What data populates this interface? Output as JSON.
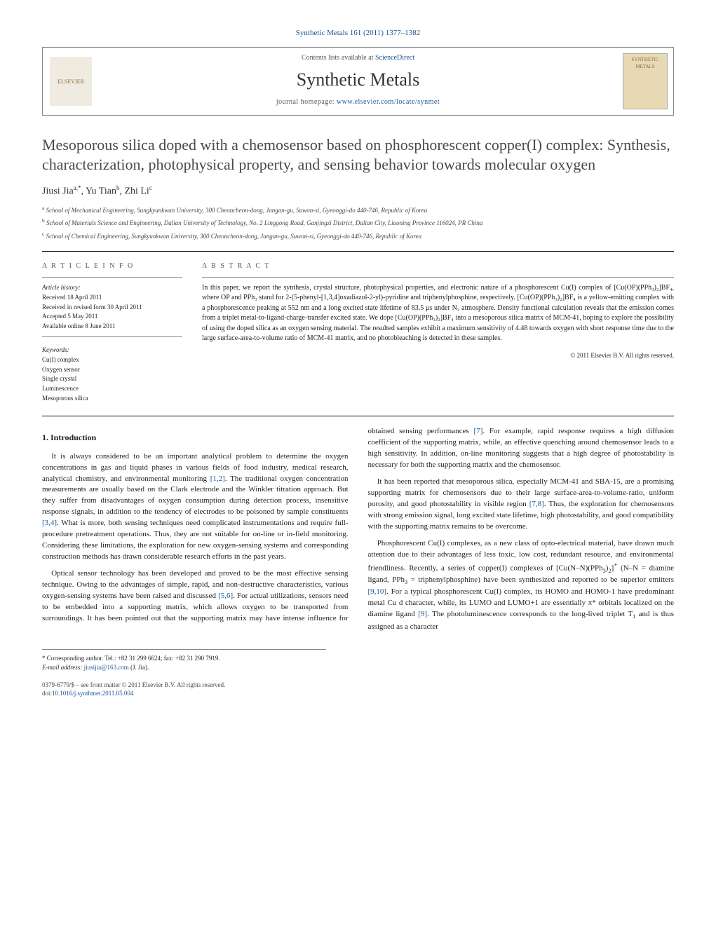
{
  "header": {
    "citation": "Synthetic Metals 161 (2011) 1377–1382",
    "contents_available": "Contents lists available at",
    "contents_link": "ScienceDirect",
    "journal": "Synthetic Metals",
    "homepage_label": "journal homepage:",
    "homepage_url": "www.elsevier.com/locate/synmet",
    "publisher_logo_text": "ELSEVIER",
    "cover_text": "SYNTHETIC METALS"
  },
  "article": {
    "title": "Mesoporous silica doped with a chemosensor based on phosphorescent copper(I) complex: Synthesis, characterization, photophysical property, and sensing behavior towards molecular oxygen",
    "authors_html": "Jiusi Jia<sup>a,*</sup>, Yu Tian<sup>b</sup>, Zhi Li<sup>c</sup>",
    "affiliations": [
      {
        "sup": "a",
        "text": "School of Mechanical Engineering, Sungkyunkwan University, 300 Cheoncheon-dong, Jangan-gu, Suwon-si, Gyeonggi-do 440-746, Republic of Korea"
      },
      {
        "sup": "b",
        "text": "School of Materials Science and Engineering, Dalian University of Technology, No. 2 Linggong Road, Ganjingzi District, Dalian City, Liaoning Province 116024, PR China"
      },
      {
        "sup": "c",
        "text": "School of Chemical Engineering, Sungkyunkwan University, 300 Cheoncheon-dong, Jangan-gu, Suwon-si, Gyeonggi-do 440-746, Republic of Korea"
      }
    ]
  },
  "info": {
    "heading": "A R T I C L E   I N F O",
    "history_label": "Article history:",
    "history": [
      "Received 18 April 2011",
      "Received in revised form 30 April 2011",
      "Accepted 5 May 2011",
      "Available online 8 June 2011"
    ],
    "keywords_label": "Keywords:",
    "keywords": [
      "Cu(I) complex",
      "Oxygen sensor",
      "Single crystal",
      "Luminescence",
      "Mesoporous silica"
    ]
  },
  "abstract": {
    "heading": "A B S T R A C T",
    "text": "In this paper, we report the synthesis, crystal structure, photophysical properties, and electronic nature of a phosphorescent Cu(I) complex of [Cu(OP)(PPh₃)₂]BF₄, where OP and PPh₃ stand for 2-(5-phenyl-[1,3,4]oxadiazol-2-yl)-pyridine and triphenylphosphine, respectively. [Cu(OP)(PPh₃)₂]BF₄ is a yellow-emitting complex with a phosphorescence peaking at 552 nm and a long excited state lifetime of 83.5 μs under N₂ atmosphere. Density functional calculation reveals that the emission comes from a triplet metal-to-ligand-charge-transfer excited state. We dope [Cu(OP)(PPh₃)₂]BF₄ into a mesoporous silica matrix of MCM-41, hoping to explore the possibility of using the doped silica as an oxygen sensing material. The resulted samples exhibit a maximum sensitivity of 4.48 towards oxygen with short response time due to the large surface-area-to-volume ratio of MCM-41 matrix, and no photobleaching is detected in these samples.",
    "copyright": "© 2011 Elsevier B.V. All rights reserved."
  },
  "body": {
    "section_heading": "1. Introduction",
    "paragraphs": [
      "It is always considered to be an important analytical problem to determine the oxygen concentrations in gas and liquid phases in various fields of food industry, medical research, analytical chemistry, and environmental monitoring [1,2]. The traditional oxygen concentration measurements are usually based on the Clark electrode and the Winkler titration approach. But they suffer from disadvantages of oxygen consumption during detection process, insensitive response signals, in addition to the tendency of electrodes to be poisoned by sample constituents [3,4]. What is more, both sensing techniques need complicated instrumentations and require full-procedure pretreatment operations. Thus, they are not suitable for on-line or in-field monitoring. Considering these limitations, the exploration for new oxygen-sensing systems and corresponding construction methods has drawn considerable research efforts in the past years.",
      "Optical sensor technology has been developed and proved to be the most effective sensing technique. Owing to the advantages of simple, rapid, and non-destructive characteristics, various oxygen-sensing systems have been raised and discussed [5,6]. For actual utilizations, sensors need to be embedded into a supporting matrix, which allows oxygen to be transported from surroundings. It has been pointed out that the supporting matrix may have intense influence for obtained sensing performances [7]. For example, rapid response requires a high diffusion coefficient of the supporting matrix, while, an effective quenching around chemosensor leads to a high sensitivity. In addition, on-line monitoring suggests that a high degree of photostability is necessary for both the supporting matrix and the chemosensor.",
      "It has been reported that mesoporous silica, especially MCM-41 and SBA-15, are a promising supporting matrix for chemosensors due to their large surface-area-to-volume-ratio, uniform porosity, and good photostability in visible region [7,8]. Thus, the exploration for chemosensors with strong emission signal, long excited state lifetime, high photostability, and good compatibility with the supporting matrix remains to be overcome.",
      "Phosphorescent Cu(I) complexes, as a new class of opto-electrical material, have drawn much attention due to their advantages of less toxic, low cost, redundant resource, and environmental friendliness. Recently, a series of copper(I) complexes of [Cu(N–N)(PPh₃)₂]⁺ (N–N = diamine ligand, PPh₃ = triphenylphosphine) have been synthesized and reported to be superior emitters [9,10]. For a typical phosphorescent Cu(I) complex, its HOMO and HOMO-1 have predominant metal Cu d character, while, its LUMO and LUMO+1 are essentially π* orbitals localized on the diamine ligand [9]. The photoluminescence corresponds to the long-lived triplet T₁ and is thus assigned as a character"
    ]
  },
  "footnote": {
    "corresponding": "* Corresponding author. Tel.: +82 31 299 6624; fax: +82 31 290 7919.",
    "email_label": "E-mail address:",
    "email": "jiusijia@163.com",
    "email_who": "(J. Jia)."
  },
  "bottom": {
    "issn": "0379-6779/$ – see front matter © 2011 Elsevier B.V. All rights reserved.",
    "doi_label": "doi:",
    "doi": "10.1016/j.synthmet.2011.05.004"
  },
  "refs": {
    "r12": "[1,2]",
    "r34": "[3,4]",
    "r56": "[5,6]",
    "r7": "[7]",
    "r78": "[7,8]",
    "r9": "[9]",
    "r910": "[9,10]"
  }
}
